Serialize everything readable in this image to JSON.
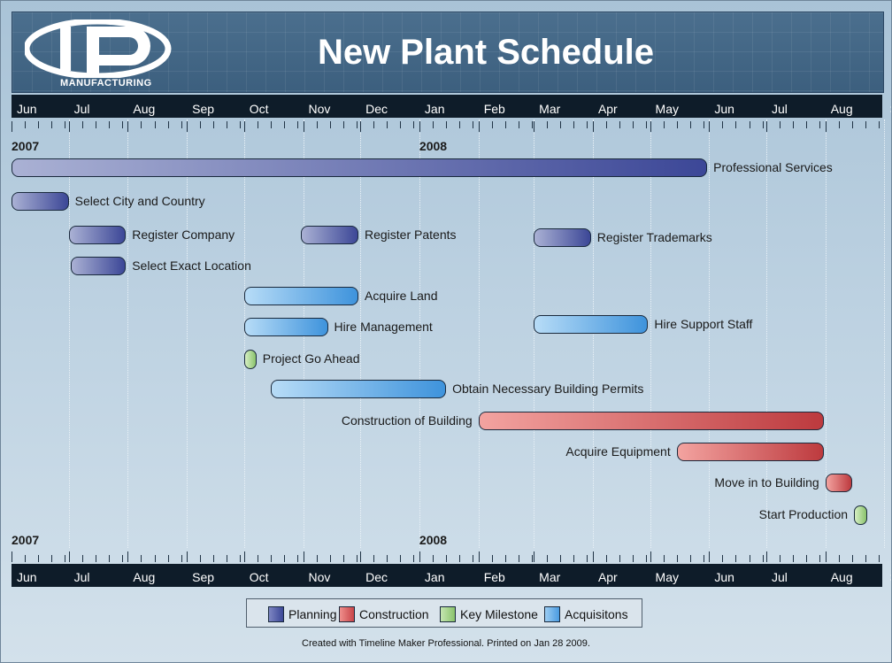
{
  "header": {
    "title": "New Plant Schedule",
    "logo_text": "MANUFACTURING",
    "logo_glyph": "P"
  },
  "colors": {
    "planning": "#4a55a0",
    "construction": "#c84448",
    "key_milestone": "#8ac36c",
    "acquisitions": "#4a9be0"
  },
  "chart_data": {
    "type": "gantt",
    "axis": {
      "months": [
        "Jun",
        "Jul",
        "Aug",
        "Sep",
        "Oct",
        "Nov",
        "Dec",
        "Jan",
        "Feb",
        "Mar",
        "Apr",
        "May",
        "Jun",
        "Jul",
        "Aug",
        "Sep"
      ],
      "years": [
        {
          "label": "2007",
          "start": "2007-06-01"
        },
        {
          "label": "2008",
          "start": "2008-01-01"
        }
      ],
      "range": [
        "2007-06-01",
        "2008-09-15"
      ]
    },
    "tasks": [
      {
        "name": "Professional Services",
        "category": "planning",
        "start": "2007-06-01",
        "end": "2008-05-31",
        "label_side": "right"
      },
      {
        "name": "Select City and Country",
        "category": "planning",
        "start": "2007-06-01",
        "end": "2007-07-01",
        "label_side": "right"
      },
      {
        "name": "Register Company",
        "category": "planning",
        "start": "2007-07-01",
        "end": "2007-07-31",
        "label_side": "right"
      },
      {
        "name": "Register Patents",
        "category": "planning",
        "start": "2007-10-31",
        "end": "2007-11-30",
        "label_side": "right"
      },
      {
        "name": "Register Trademarks",
        "category": "planning",
        "start": "2008-03-01",
        "end": "2008-03-31",
        "label_side": "right"
      },
      {
        "name": "Select Exact Location",
        "category": "planning",
        "start": "2007-07-02",
        "end": "2007-07-31",
        "label_side": "right"
      },
      {
        "name": "Acquire Land",
        "category": "acquisitions",
        "start": "2007-10-01",
        "end": "2007-11-30",
        "label_side": "right"
      },
      {
        "name": "Hire Management",
        "category": "acquisitions",
        "start": "2007-10-01",
        "end": "2007-11-14",
        "label_side": "right"
      },
      {
        "name": "Hire Support Staff",
        "category": "acquisitions",
        "start": "2008-03-01",
        "end": "2008-04-30",
        "label_side": "right"
      },
      {
        "name": "Project Go Ahead",
        "category": "key_milestone",
        "start": "2007-10-01",
        "end": "2007-10-07",
        "label_side": "right"
      },
      {
        "name": "Obtain Necessary Building Permits",
        "category": "acquisitions",
        "start": "2007-10-15",
        "end": "2008-01-15",
        "label_side": "right"
      },
      {
        "name": "Construction of Building",
        "category": "construction",
        "start": "2008-02-01",
        "end": "2008-07-31",
        "label_side": "left"
      },
      {
        "name": "Acquire Equipment",
        "category": "construction",
        "start": "2008-05-15",
        "end": "2008-07-31",
        "label_side": "left"
      },
      {
        "name": "Move in to Building",
        "category": "construction",
        "start": "2008-08-01",
        "end": "2008-08-15",
        "label_side": "left"
      },
      {
        "name": "Start Production",
        "category": "key_milestone",
        "start": "2008-08-16",
        "end": "2008-08-23",
        "label_side": "left"
      }
    ],
    "legend": [
      {
        "label": "Planning",
        "category": "planning"
      },
      {
        "label": "Construction",
        "category": "construction"
      },
      {
        "label": "Key Milestone",
        "category": "key_milestone"
      },
      {
        "label": "Acquisitons",
        "category": "acquisitions"
      }
    ],
    "legend_position": "bottom"
  },
  "footer": "Created with Timeline Maker Professional. Printed on Jan 28 2009."
}
